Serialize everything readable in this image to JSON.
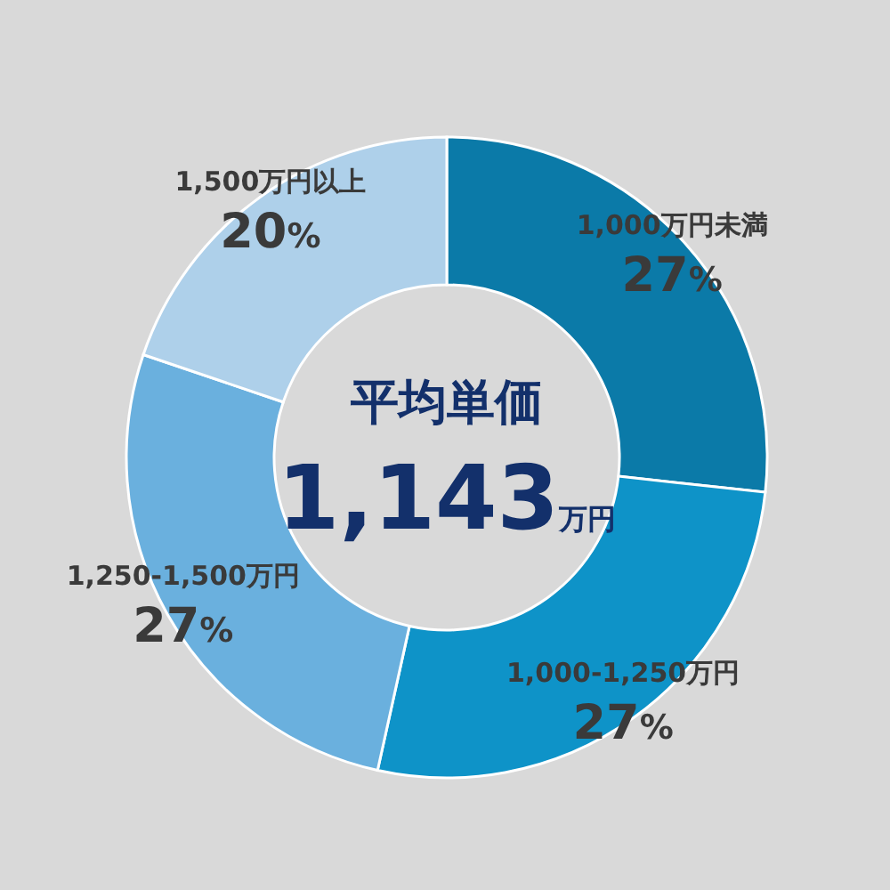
{
  "chart_data": {
    "type": "donut",
    "categories": [
      "1,000万円未満",
      "1,000-1,250万円",
      "1,250-1,500万円",
      "1,500万円以上"
    ],
    "values": [
      27,
      27,
      27,
      20
    ],
    "value_labels": [
      "27%",
      "27%",
      "27%",
      "20%"
    ],
    "colors": [
      "#0b7aa8",
      "#0e93c8",
      "#6ab0de",
      "#aed0ea"
    ],
    "annotations": [
      "平均単価",
      "1,143万円"
    ]
  }
}
